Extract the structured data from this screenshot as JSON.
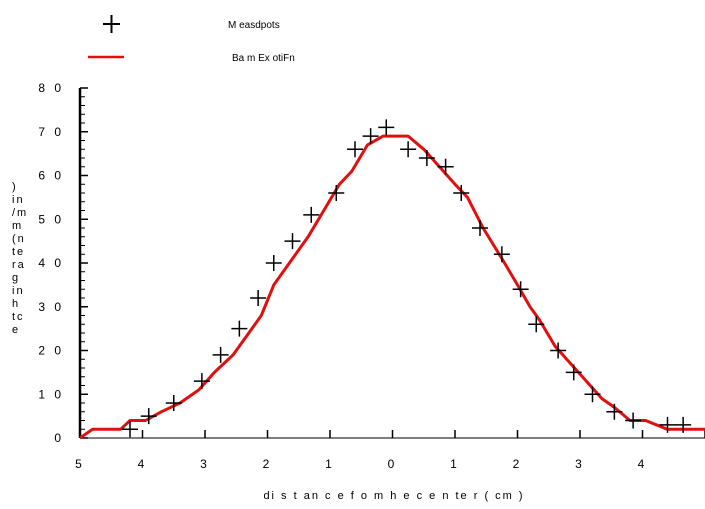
{
  "chart_data": {
    "type": "line",
    "title": "",
    "xlabel": "di s t an c e f o m  h e c e n te r ( cm  )",
    "ylabel": ")\nin\n/m\nm\n(n\nte\nra\ng\nin\nh\ntc\ne",
    "xlim": [
      -5,
      5
    ],
    "ylim": [
      0,
      80
    ],
    "x_tick_labels": [
      "5",
      "4",
      "3",
      "2",
      "1",
      "0",
      "1",
      "2",
      "3",
      "4",
      ""
    ],
    "y_tick_labels": [
      "0",
      "1 0",
      "2 0",
      "3 0",
      "4 0",
      "5 0",
      "6 0",
      "7 0",
      "8 0"
    ],
    "y_tick_values": [
      0,
      10,
      20,
      30,
      40,
      50,
      60,
      70,
      80
    ],
    "x_tick_values": [
      -5,
      -4,
      -3,
      -2,
      -1,
      0,
      1,
      2,
      3,
      4,
      5
    ],
    "grid": false,
    "legend_position": "top-left",
    "series": [
      {
        "name": "M easdpots",
        "style": "marker",
        "marker": "plus",
        "color": "#000000",
        "x": [
          -4.2,
          -3.9,
          -3.5,
          -3.05,
          -2.75,
          -2.45,
          -2.15,
          -1.9,
          -1.6,
          -1.3,
          -0.9,
          -0.6,
          -0.35,
          -0.1,
          0.25,
          0.55,
          0.85,
          1.1,
          1.4,
          1.75,
          2.05,
          2.3,
          2.65,
          2.9,
          3.2,
          3.55,
          3.85,
          4.4,
          4.65
        ],
        "y": [
          2,
          5,
          8,
          13,
          19,
          25,
          32,
          40,
          45,
          51,
          56,
          66,
          69,
          71,
          66,
          64,
          62,
          56,
          48,
          42,
          34,
          26,
          20,
          15,
          10,
          6,
          4,
          3,
          3
        ]
      },
      {
        "name": "Ba m  Ex otiFn",
        "style": "line",
        "color": "#e01010",
        "x": [
          -5.0,
          -4.8,
          -4.35,
          -4.2,
          -3.95,
          -3.7,
          -3.4,
          -3.1,
          -2.85,
          -2.55,
          -2.3,
          -2.1,
          -1.9,
          -1.65,
          -1.35,
          -1.1,
          -0.85,
          -0.65,
          -0.4,
          -0.15,
          0.1,
          0.25,
          0.5,
          0.75,
          1.0,
          1.2,
          1.45,
          1.75,
          2.0,
          2.2,
          2.35,
          2.6,
          2.85,
          3.1,
          3.35,
          3.55,
          3.8,
          4.05,
          4.4,
          4.65,
          5.0
        ],
        "y": [
          0,
          2,
          2,
          4,
          4,
          6,
          8,
          11,
          15,
          19,
          24,
          28,
          35,
          40,
          46,
          52,
          58,
          61,
          67,
          69,
          69,
          69,
          66,
          62,
          58,
          55,
          48,
          41,
          35,
          30,
          27,
          21,
          17,
          13,
          9,
          7,
          4,
          4,
          2,
          2,
          2
        ]
      }
    ]
  }
}
